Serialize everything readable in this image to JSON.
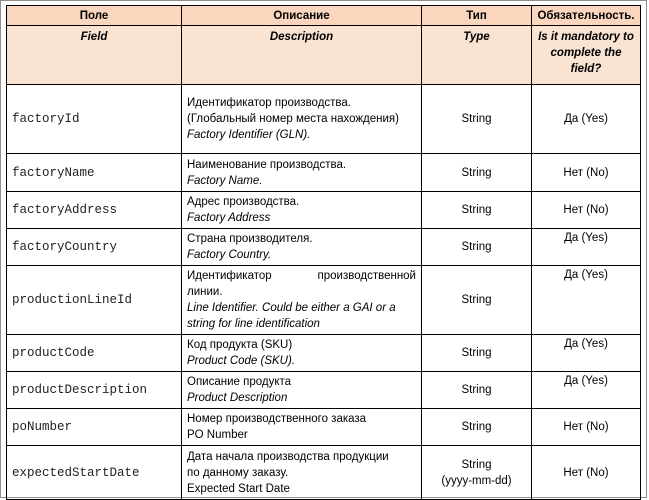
{
  "header": {
    "ru": [
      "Поле",
      "Описание",
      "Тип",
      "Обязательность."
    ],
    "en": [
      "Field",
      "Description",
      "Type",
      "Is it mandatory to complete the field?"
    ]
  },
  "rows": [
    {
      "field": "factoryId",
      "desc_ru": [
        "Идентификатор производства.",
        "(Глобальный номер места нахождения)"
      ],
      "desc_en": "Factory Identifier (GLN).",
      "type": "String",
      "type_sub": "",
      "mandatory": "Да (Yes)"
    },
    {
      "field": "factoryName",
      "desc_ru": [
        "Наименование производства."
      ],
      "desc_en": "Factory Name.",
      "type": "String",
      "type_sub": "",
      "mandatory": "Нет (No)"
    },
    {
      "field": "factoryAddress",
      "desc_ru": [
        "Адрес производства."
      ],
      "desc_en": "Factory Address",
      "type": "String",
      "type_sub": "",
      "mandatory": "Нет (No)"
    },
    {
      "field": "factoryCountry",
      "desc_ru": [
        "Страна производителя."
      ],
      "desc_en": "Factory Country.",
      "type": "String",
      "type_sub": "",
      "mandatory": "Да (Yes)"
    },
    {
      "field": "productionLineId",
      "desc_ru": [
        "Идентификатор производственной",
        "линии."
      ],
      "desc_en": "Line Identifier. Could be either a GAI or a string for line identification",
      "type": "String",
      "type_sub": "",
      "mandatory": "Да (Yes)"
    },
    {
      "field": "productCode",
      "desc_ru": [
        "Код продукта (SKU)"
      ],
      "desc_en": "Product Code (SKU).",
      "type": "String",
      "type_sub": "",
      "mandatory": "Да (Yes)"
    },
    {
      "field": "productDescription",
      "desc_ru": [
        "Описание продукта"
      ],
      "desc_en": "Product Description",
      "type": "String",
      "type_sub": "",
      "mandatory": "Да (Yes)"
    },
    {
      "field": "poNumber",
      "desc_ru": [
        "Номер производственного заказа"
      ],
      "desc_en": "PO Number",
      "type": "String",
      "type_sub": "",
      "mandatory": "Нет (No)"
    },
    {
      "field": "expectedStartDate",
      "desc_ru": [
        "Дата начала производства продукции",
        "по данному заказу."
      ],
      "desc_en": "Expected Start Date",
      "type": "String",
      "type_sub": "(yyyy-mm-dd)",
      "mandatory": "Нет (No)"
    }
  ]
}
